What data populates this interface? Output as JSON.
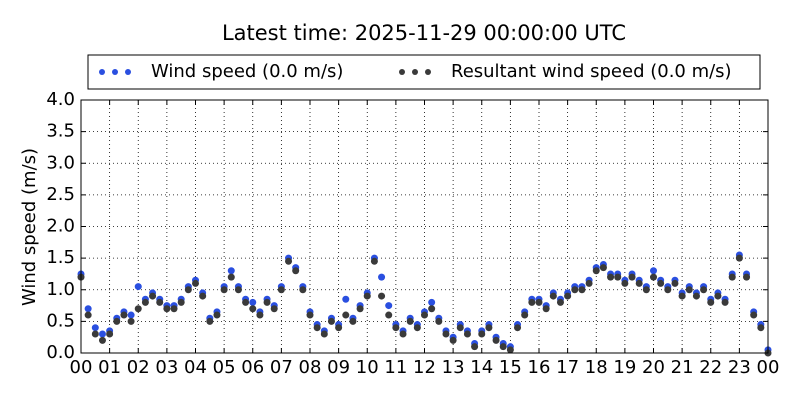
{
  "chart_data": {
    "type": "scatter",
    "title": "Latest time: 2025-11-29 00:00:00 UTC",
    "ylabel": "Wind speed (m/s)",
    "x": [
      0,
      0.25,
      0.5,
      0.75,
      1,
      1.25,
      1.5,
      1.75,
      2,
      2.25,
      2.5,
      2.75,
      3,
      3.25,
      3.5,
      3.75,
      4,
      4.25,
      4.5,
      4.75,
      5,
      5.25,
      5.5,
      5.75,
      6,
      6.25,
      6.5,
      6.75,
      7,
      7.25,
      7.5,
      7.75,
      8,
      8.25,
      8.5,
      8.75,
      9,
      9.25,
      9.5,
      9.75,
      10,
      10.25,
      10.5,
      10.75,
      11,
      11.25,
      11.5,
      11.75,
      12,
      12.25,
      12.5,
      12.75,
      13,
      13.25,
      13.5,
      13.75,
      14,
      14.25,
      14.5,
      14.75,
      15,
      15.25,
      15.5,
      15.75,
      16,
      16.25,
      16.5,
      16.75,
      17,
      17.25,
      17.5,
      17.75,
      18,
      18.25,
      18.5,
      18.75,
      19,
      19.25,
      19.5,
      19.75,
      20,
      20.25,
      20.5,
      20.75,
      21,
      21.25,
      21.5,
      21.75,
      22,
      22.25,
      22.5,
      22.75,
      23,
      23.25,
      23.5,
      23.75,
      24
    ],
    "series": [
      {
        "name": "Wind speed (0.0 m/s)",
        "color": "#2a4fe0",
        "values": [
          1.25,
          0.7,
          0.4,
          0.3,
          0.35,
          0.55,
          0.65,
          0.6,
          1.05,
          0.85,
          0.95,
          0.85,
          0.75,
          0.75,
          0.85,
          1.05,
          1.15,
          0.95,
          0.55,
          0.65,
          1.05,
          1.3,
          1.05,
          0.85,
          0.8,
          0.65,
          0.85,
          0.75,
          1.05,
          1.5,
          1.35,
          1.05,
          0.65,
          0.45,
          0.35,
          0.55,
          0.45,
          0.85,
          0.55,
          0.75,
          0.95,
          1.5,
          1.2,
          0.75,
          0.45,
          0.35,
          0.55,
          0.45,
          0.65,
          0.8,
          0.55,
          0.35,
          0.25,
          0.45,
          0.35,
          0.15,
          0.35,
          0.45,
          0.25,
          0.15,
          0.1,
          0.45,
          0.65,
          0.85,
          0.85,
          0.75,
          0.95,
          0.85,
          0.95,
          1.05,
          1.05,
          1.15,
          1.35,
          1.4,
          1.25,
          1.25,
          1.15,
          1.25,
          1.15,
          1.05,
          1.3,
          1.15,
          1.05,
          1.15,
          0.95,
          1.05,
          0.95,
          1.05,
          0.85,
          0.95,
          0.85,
          1.25,
          1.55,
          1.25,
          0.65,
          0.45,
          0.05
        ]
      },
      {
        "name": "Resultant wind speed (0.0 m/s)",
        "color": "#3a3a3a",
        "values": [
          1.2,
          0.6,
          0.3,
          0.2,
          0.3,
          0.5,
          0.6,
          0.5,
          0.7,
          0.8,
          0.9,
          0.8,
          0.7,
          0.7,
          0.8,
          1.0,
          1.1,
          0.9,
          0.5,
          0.6,
          1.0,
          1.2,
          1.0,
          0.8,
          0.7,
          0.6,
          0.8,
          0.7,
          1.0,
          1.45,
          1.3,
          1.0,
          0.6,
          0.4,
          0.3,
          0.5,
          0.4,
          0.6,
          0.5,
          0.7,
          0.9,
          1.45,
          0.9,
          0.6,
          0.4,
          0.3,
          0.5,
          0.4,
          0.6,
          0.7,
          0.5,
          0.3,
          0.2,
          0.4,
          0.3,
          0.1,
          0.3,
          0.4,
          0.2,
          0.1,
          0.05,
          0.4,
          0.6,
          0.8,
          0.8,
          0.7,
          0.9,
          0.8,
          0.9,
          1.0,
          1.0,
          1.1,
          1.3,
          1.35,
          1.2,
          1.2,
          1.1,
          1.2,
          1.1,
          1.0,
          1.2,
          1.1,
          1.0,
          1.1,
          0.9,
          1.0,
          0.9,
          1.0,
          0.8,
          0.9,
          0.8,
          1.2,
          1.5,
          1.2,
          0.6,
          0.4,
          0.0
        ]
      }
    ],
    "xlim": [
      0,
      24
    ],
    "xticks": [
      {
        "value": 0,
        "label": "00"
      },
      {
        "value": 1,
        "label": "01"
      },
      {
        "value": 2,
        "label": "02"
      },
      {
        "value": 3,
        "label": "03"
      },
      {
        "value": 4,
        "label": "04"
      },
      {
        "value": 5,
        "label": "05"
      },
      {
        "value": 6,
        "label": "06"
      },
      {
        "value": 7,
        "label": "07"
      },
      {
        "value": 8,
        "label": "08"
      },
      {
        "value": 9,
        "label": "09"
      },
      {
        "value": 10,
        "label": "10"
      },
      {
        "value": 11,
        "label": "11"
      },
      {
        "value": 12,
        "label": "12"
      },
      {
        "value": 13,
        "label": "13"
      },
      {
        "value": 14,
        "label": "14"
      },
      {
        "value": 15,
        "label": "15"
      },
      {
        "value": 16,
        "label": "16"
      },
      {
        "value": 17,
        "label": "17"
      },
      {
        "value": 18,
        "label": "18"
      },
      {
        "value": 19,
        "label": "19"
      },
      {
        "value": 20,
        "label": "20"
      },
      {
        "value": 21,
        "label": "21"
      },
      {
        "value": 22,
        "label": "22"
      },
      {
        "value": 23,
        "label": "23"
      },
      {
        "value": 24,
        "label": "00"
      }
    ],
    "ylim": [
      0,
      4
    ],
    "yticks": [
      {
        "value": 0,
        "label": "0.0"
      },
      {
        "value": 0.5,
        "label": "0.5"
      },
      {
        "value": 1,
        "label": "1.0"
      },
      {
        "value": 1.5,
        "label": "1.5"
      },
      {
        "value": 2,
        "label": "2.0"
      },
      {
        "value": 2.5,
        "label": "2.5"
      },
      {
        "value": 3,
        "label": "3.0"
      },
      {
        "value": 3.5,
        "label": "3.5"
      },
      {
        "value": 4,
        "label": "4.0"
      }
    ],
    "grid": true,
    "legend": "top"
  }
}
